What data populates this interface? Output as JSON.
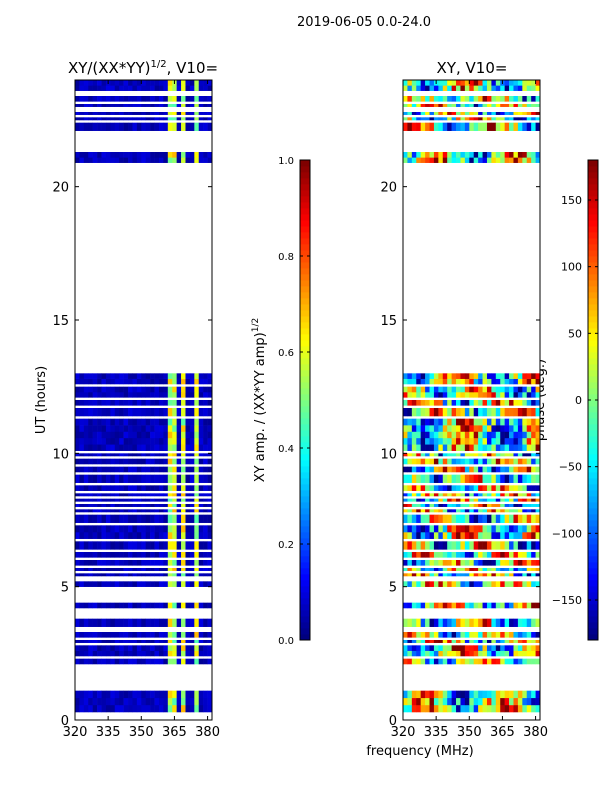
{
  "chart_data": {
    "suptitle": "2019-06-05 0.0-24.0",
    "xlabel": "frequency (MHz)",
    "colors": {
      "jet": [
        "#00007f",
        "#0000ff",
        "#007fff",
        "#00ffff",
        "#7fff7f",
        "#ffff00",
        "#ff7f00",
        "#ff0000",
        "#7f0000"
      ],
      "background": "#ffffff",
      "axis": "#000000"
    },
    "panels": [
      {
        "type": "heatmap",
        "title_main": "XY/(XX*YY)",
        "title_sup": "1/2",
        "title_tail": ", V10=",
        "ylabel": "UT (hours)",
        "xlim": [
          320,
          382
        ],
        "ylim": [
          0,
          24
        ],
        "xticks": [
          320,
          335,
          350,
          365,
          380
        ],
        "yticks": [
          0,
          5,
          10,
          15,
          20
        ],
        "cbar_label": "XY amp. / (XX*YY amp)",
        "cbar_label_sup": "1/2",
        "cbar_range": [
          0.0,
          1.0
        ],
        "cbar_ticks": [
          "0.0",
          "0.2",
          "0.4",
          "0.6",
          "0.8",
          "1.0"
        ],
        "cbar_tick_values": [
          0.0,
          0.2,
          0.4,
          0.6,
          0.8,
          1.0
        ]
      },
      {
        "type": "heatmap",
        "title_main": "XY, V10=",
        "xlim": [
          320,
          382
        ],
        "ylim": [
          0,
          24
        ],
        "xticks": [
          320,
          335,
          350,
          365,
          380
        ],
        "yticks": [
          0,
          5,
          10,
          15,
          20
        ],
        "cbar_label": "phase (deg.)",
        "cbar_range": [
          -180,
          180
        ],
        "cbar_ticks": [
          "−150",
          "−100",
          "−50",
          "0",
          "50",
          "100",
          "150"
        ],
        "cbar_tick_values": [
          -150,
          -100,
          -50,
          0,
          50,
          100,
          150
        ]
      }
    ],
    "data_time_segments_hours": [
      [
        0.3,
        1.1
      ],
      [
        2.1,
        2.3
      ],
      [
        2.4,
        2.8
      ],
      [
        2.9,
        3.0
      ],
      [
        3.1,
        3.3
      ],
      [
        3.5,
        3.8
      ],
      [
        4.2,
        4.4
      ],
      [
        5.0,
        5.2
      ],
      [
        5.4,
        5.5
      ],
      [
        5.6,
        5.7
      ],
      [
        5.8,
        6.0
      ],
      [
        6.1,
        6.3
      ],
      [
        6.4,
        6.7
      ],
      [
        6.8,
        7.3
      ],
      [
        7.4,
        7.7
      ],
      [
        7.8,
        7.9
      ],
      [
        8.0,
        8.1
      ],
      [
        8.2,
        8.3
      ],
      [
        8.4,
        8.5
      ],
      [
        8.6,
        8.8
      ],
      [
        8.9,
        9.2
      ],
      [
        9.3,
        9.5
      ],
      [
        9.6,
        9.8
      ],
      [
        9.9,
        10.0
      ],
      [
        10.1,
        11.3
      ],
      [
        11.4,
        11.7
      ],
      [
        11.8,
        12.0
      ],
      [
        12.1,
        12.5
      ],
      [
        12.6,
        13.0
      ],
      [
        20.9,
        21.3
      ],
      [
        22.1,
        22.4
      ],
      [
        22.5,
        22.6
      ],
      [
        22.7,
        22.8
      ],
      [
        23.0,
        23.1
      ],
      [
        23.2,
        23.4
      ],
      [
        23.6,
        24.0
      ]
    ],
    "bright_channel_bands_mhz": [
      [
        362,
        365
      ],
      [
        368,
        370
      ],
      [
        374,
        376
      ]
    ]
  }
}
